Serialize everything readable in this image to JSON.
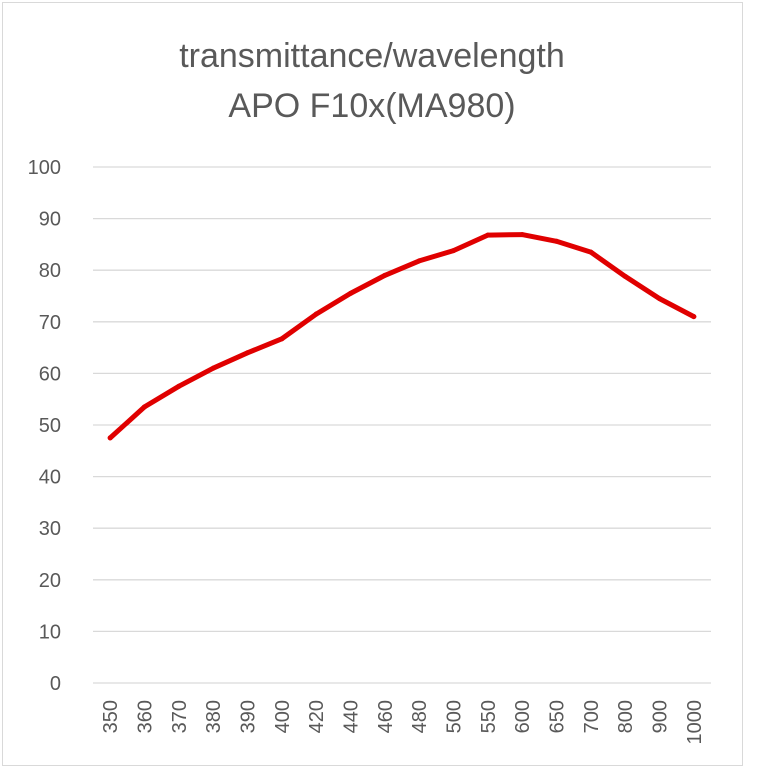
{
  "chart_data": {
    "type": "line",
    "title": [
      "transmittance/wavelength",
      "APO F10x(MA980)"
    ],
    "xlabel": "",
    "ylabel": "",
    "categories": [
      "350",
      "360",
      "370",
      "380",
      "390",
      "400",
      "420",
      "440",
      "460",
      "480",
      "500",
      "550",
      "600",
      "650",
      "700",
      "800",
      "900",
      "1000"
    ],
    "series": [
      {
        "name": "transmittance",
        "color": "#e00000",
        "values": [
          47.5,
          53.5,
          57.5,
          61,
          64,
          66.7,
          71.5,
          75.5,
          79,
          81.8,
          83.8,
          86.8,
          86.9,
          85.6,
          83.5,
          78.8,
          74.5,
          71
        ]
      }
    ],
    "ylim": [
      0,
      100
    ],
    "yticks": [
      0,
      10,
      20,
      30,
      40,
      50,
      60,
      70,
      80,
      90,
      100
    ],
    "grid": true,
    "legend": "none"
  }
}
